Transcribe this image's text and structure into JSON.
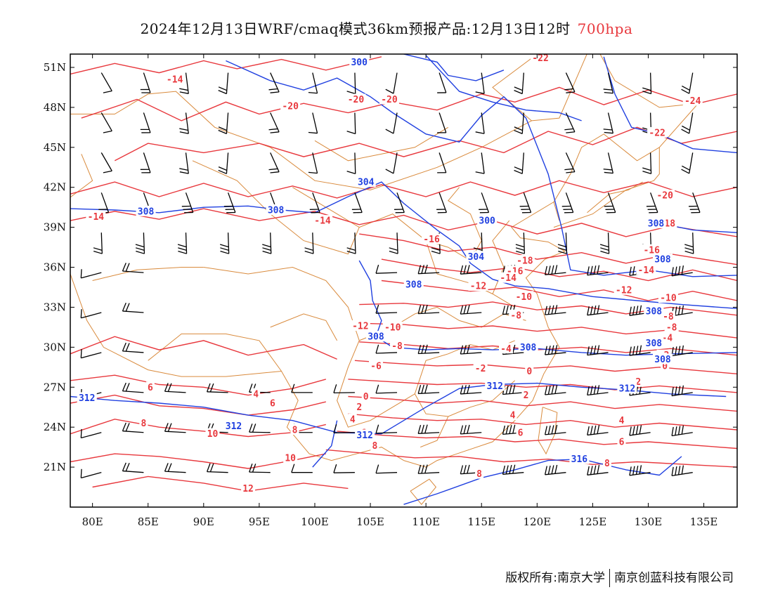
{
  "title": {
    "main": "2024年12月13日WRF/cmaq模式36km预报产品:12月13日12时",
    "level": "700hpa",
    "level_color": "#e8383d"
  },
  "footer": {
    "copyright": "版权所有:南京大学",
    "company": "南京创蓝科技有限公司"
  },
  "colors": {
    "temperature": "#e8383d",
    "geopotential": "#2040e0",
    "border": "#d98a3c",
    "wind": "#000000",
    "frame": "#000000"
  },
  "map": {
    "lon_range": [
      78,
      138
    ],
    "lat_range": [
      18,
      52
    ],
    "lat_ticks": [
      "21N",
      "24N",
      "27N",
      "30N",
      "33N",
      "36N",
      "39N",
      "42N",
      "45N",
      "48N",
      "51N"
    ],
    "lon_ticks": [
      "80E",
      "85E",
      "90E",
      "95E",
      "100E",
      "105E",
      "110E",
      "115E",
      "120E",
      "125E",
      "130E",
      "135E"
    ]
  },
  "geopotential_labels": [
    {
      "text": "300",
      "lon": 104,
      "lat": 51.4
    },
    {
      "text": "304",
      "lon": 104.6,
      "lat": 42.4
    },
    {
      "text": "308",
      "lon": 84.8,
      "lat": 40.2
    },
    {
      "text": "308",
      "lon": 96.5,
      "lat": 40.3
    },
    {
      "text": "300",
      "lon": 115.5,
      "lat": 39.5
    },
    {
      "text": "304",
      "lon": 114.5,
      "lat": 36.8
    },
    {
      "text": "308",
      "lon": 108.9,
      "lat": 34.7
    },
    {
      "text": "308",
      "lon": 105.5,
      "lat": 30.8
    },
    {
      "text": "308",
      "lon": 119.2,
      "lat": 30
    },
    {
      "text": "312",
      "lon": 79.5,
      "lat": 26.2
    },
    {
      "text": "312",
      "lon": 92.7,
      "lat": 24.1
    },
    {
      "text": "312",
      "lon": 104.5,
      "lat": 23.4
    },
    {
      "text": "312",
      "lon": 116.2,
      "lat": 27.1
    },
    {
      "text": "316",
      "lon": 123.8,
      "lat": 21.6
    },
    {
      "text": "308",
      "lon": 130.5,
      "lat": 32.7
    },
    {
      "text": "308",
      "lon": 130.5,
      "lat": 30.3
    },
    {
      "text": "308",
      "lon": 131.3,
      "lat": 29.1
    },
    {
      "text": "312",
      "lon": 128.1,
      "lat": 26.9
    },
    {
      "text": "308",
      "lon": 130.7,
      "lat": 39.3
    },
    {
      "text": "308",
      "lon": 131.3,
      "lat": 36.6
    }
  ],
  "temperature_labels": [
    {
      "text": "-14",
      "lon": 87.4,
      "lat": 50.1
    },
    {
      "text": "-20",
      "lon": 97.8,
      "lat": 48.1
    },
    {
      "text": "-20",
      "lon": 103.7,
      "lat": 48.6
    },
    {
      "text": "-20",
      "lon": 106.7,
      "lat": 48.6
    },
    {
      "text": "-22",
      "lon": 120.3,
      "lat": 51.7
    },
    {
      "text": "-24",
      "lon": 134,
      "lat": 48.5
    },
    {
      "text": "-22",
      "lon": 130.8,
      "lat": 46.1
    },
    {
      "text": "-20",
      "lon": 131.5,
      "lat": 41.4
    },
    {
      "text": "-14",
      "lon": 80.3,
      "lat": 39.8
    },
    {
      "text": "-14",
      "lon": 100.7,
      "lat": 39.5
    },
    {
      "text": "-16",
      "lon": 110.5,
      "lat": 38.1
    },
    {
      "text": "-18",
      "lon": 131.7,
      "lat": 39.3
    },
    {
      "text": "-18",
      "lon": 118.9,
      "lat": 36.5
    },
    {
      "text": "-16",
      "lon": 130.3,
      "lat": 37.3
    },
    {
      "text": "-16",
      "lon": 118,
      "lat": 35.7
    },
    {
      "text": "-14",
      "lon": 117.4,
      "lat": 35.2
    },
    {
      "text": "-14",
      "lon": 129.8,
      "lat": 35.8
    },
    {
      "text": "-12",
      "lon": 114.7,
      "lat": 34.6
    },
    {
      "text": "-12",
      "lon": 127.8,
      "lat": 34.3
    },
    {
      "text": "-10",
      "lon": 118.8,
      "lat": 33.8
    },
    {
      "text": "-10",
      "lon": 131.8,
      "lat": 33.7
    },
    {
      "text": "-8",
      "lon": 118.1,
      "lat": 32.4
    },
    {
      "text": "-8",
      "lon": 131.8,
      "lat": 32.3
    },
    {
      "text": "-8",
      "lon": 132.1,
      "lat": 31.5
    },
    {
      "text": "-12",
      "lon": 104.1,
      "lat": 31.6
    },
    {
      "text": "-10",
      "lon": 107,
      "lat": 31.5
    },
    {
      "text": "-8",
      "lon": 107.4,
      "lat": 30.1
    },
    {
      "text": "-6",
      "lon": 105.5,
      "lat": 28.6
    },
    {
      "text": "-4",
      "lon": 131.7,
      "lat": 30.7
    },
    {
      "text": "-4",
      "lon": 117.2,
      "lat": 29.9
    },
    {
      "text": "-2",
      "lon": 131.4,
      "lat": 29.4
    },
    {
      "text": "-2",
      "lon": 114.9,
      "lat": 28.4
    },
    {
      "text": "0",
      "lon": 131.5,
      "lat": 28.6
    },
    {
      "text": "0",
      "lon": 119.3,
      "lat": 28.2
    },
    {
      "text": "2",
      "lon": 129.1,
      "lat": 27.4
    },
    {
      "text": "2",
      "lon": 119,
      "lat": 26.4
    },
    {
      "text": "4",
      "lon": 117.8,
      "lat": 24.9
    },
    {
      "text": "4",
      "lon": 127.6,
      "lat": 24.5
    },
    {
      "text": "6",
      "lon": 118.5,
      "lat": 23.6
    },
    {
      "text": "6",
      "lon": 127.6,
      "lat": 22.9
    },
    {
      "text": "8",
      "lon": 126.3,
      "lat": 21.3
    },
    {
      "text": "8",
      "lon": 114.8,
      "lat": 20.5
    },
    {
      "text": "6",
      "lon": 85.2,
      "lat": 27
    },
    {
      "text": "4",
      "lon": 94.7,
      "lat": 26.5
    },
    {
      "text": "6",
      "lon": 96.2,
      "lat": 25.8
    },
    {
      "text": "8",
      "lon": 84.6,
      "lat": 24.3
    },
    {
      "text": "10",
      "lon": 90.8,
      "lat": 23.5
    },
    {
      "text": "8",
      "lon": 98.2,
      "lat": 23.8
    },
    {
      "text": "10",
      "lon": 97.8,
      "lat": 21.7
    },
    {
      "text": "12",
      "lon": 94,
      "lat": 19.4
    },
    {
      "text": "0",
      "lon": 104.6,
      "lat": 26.3
    },
    {
      "text": "2",
      "lon": 104,
      "lat": 25.5
    },
    {
      "text": "4",
      "lon": 103.4,
      "lat": 24.6
    },
    {
      "text": "6",
      "lon": 104.4,
      "lat": 23.6
    },
    {
      "text": "8",
      "lon": 105.4,
      "lat": 22.6
    }
  ]
}
